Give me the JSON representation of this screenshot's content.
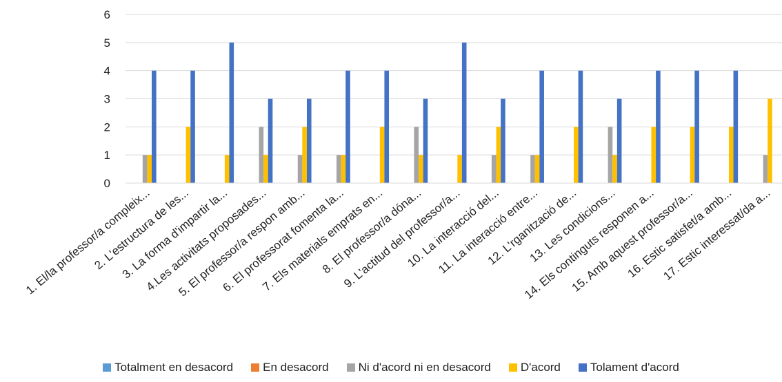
{
  "chart_data": {
    "type": "bar",
    "categories": [
      "1. El/la professor/a compleix...",
      "2. L'estructura de les...",
      "3. La forma d'impartir la...",
      "4.Les activitats proposades...",
      "5. El professor/a respon amb...",
      "6. El professorat fomenta la...",
      "7. Els materials emprats en...",
      "8. El professor/a dóna...",
      "9. L'actitud del professor/a...",
      "10. La interacció del...",
      "11. La interacció entre...",
      "12. L'rganització de...",
      "13. Les condicions...",
      "14. Els continguts responen a...",
      "15. Amb aquest professor/a...",
      "16. Estic satisfet/a amb...",
      "17. Estic interessat/da a..."
    ],
    "series": [
      {
        "name": "Totalment en desacord",
        "color": "#5B9BD5",
        "values": [
          0,
          0,
          0,
          0,
          0,
          0,
          0,
          0,
          0,
          0,
          0,
          0,
          0,
          0,
          0,
          0,
          0
        ]
      },
      {
        "name": "En desacord",
        "color": "#ED7D31",
        "values": [
          0,
          0,
          0,
          0,
          0,
          0,
          0,
          0,
          0,
          0,
          0,
          0,
          0,
          0,
          0,
          0,
          0
        ]
      },
      {
        "name": "Ni d'acord ni en desacord",
        "color": "#A5A5A5",
        "values": [
          1,
          0,
          0,
          2,
          1,
          1,
          0,
          2,
          0,
          1,
          1,
          0,
          2,
          0,
          0,
          0,
          1
        ]
      },
      {
        "name": "D'acord",
        "color": "#FFC000",
        "values": [
          1,
          2,
          1,
          1,
          2,
          1,
          2,
          1,
          1,
          2,
          1,
          2,
          1,
          2,
          2,
          2,
          3
        ]
      },
      {
        "name": "Tolament d'acord",
        "color": "#4472C4",
        "values": [
          4,
          4,
          5,
          3,
          3,
          4,
          4,
          3,
          5,
          3,
          4,
          4,
          3,
          4,
          4,
          4,
          0
        ]
      }
    ],
    "y_ticks": [
      "0",
      "1",
      "2",
      "3",
      "4",
      "5",
      "6"
    ],
    "ylim": [
      0,
      6
    ],
    "grid": true,
    "legend_position": "bottom"
  }
}
